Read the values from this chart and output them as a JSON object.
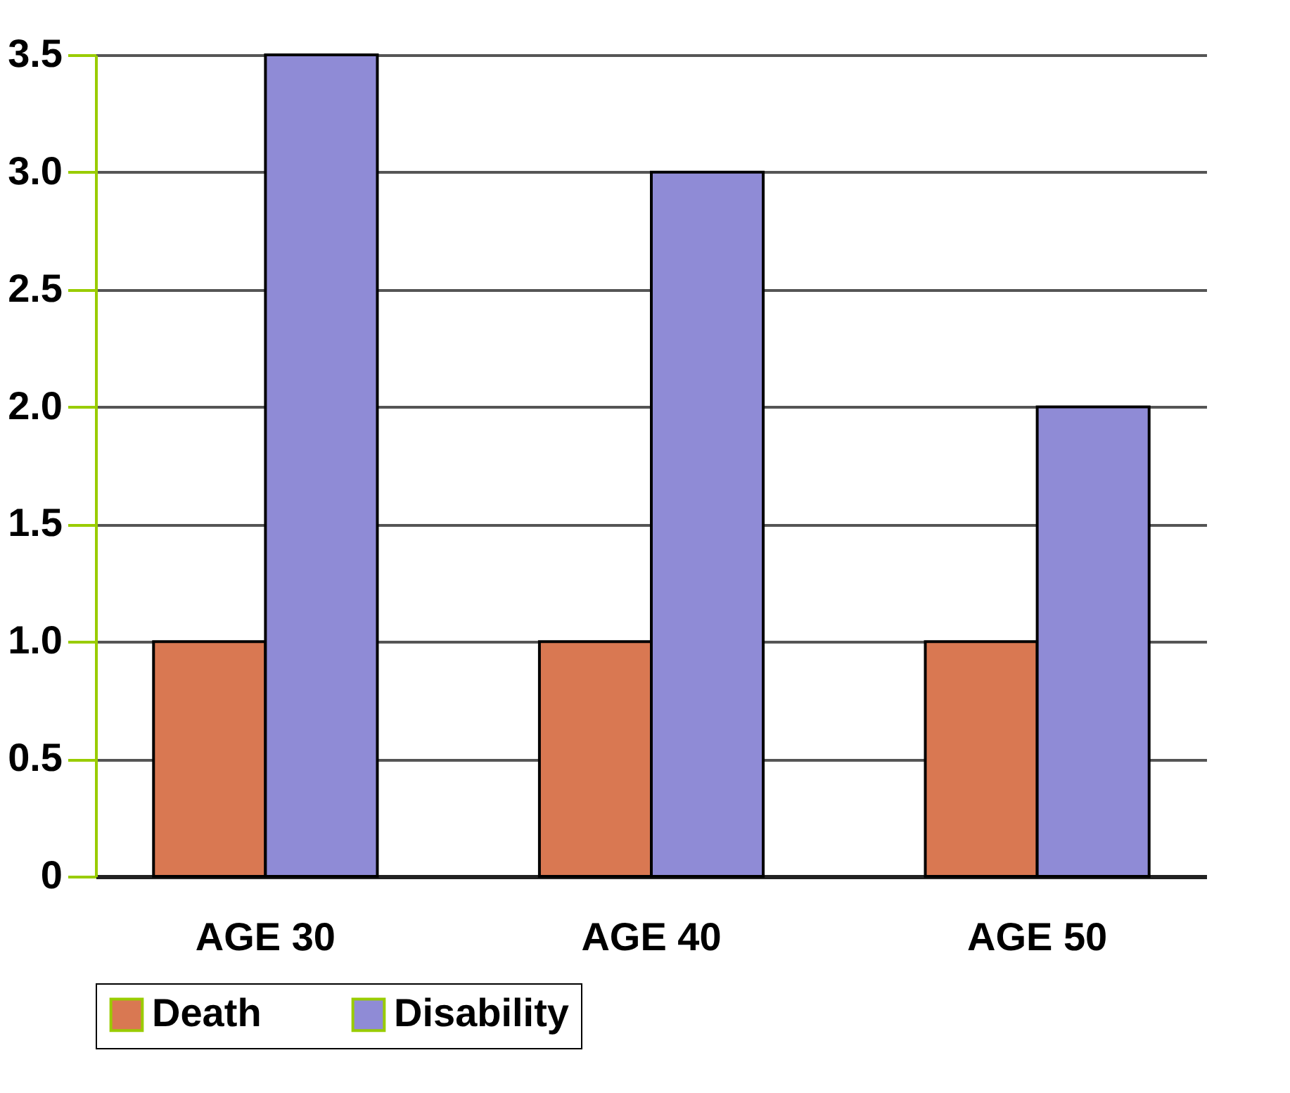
{
  "chart_data": {
    "type": "bar",
    "categories": [
      "AGE 30",
      "AGE 40",
      "AGE 50"
    ],
    "series": [
      {
        "name": "Death",
        "color": "#d97852",
        "values": [
          1.0,
          1.0,
          1.0
        ]
      },
      {
        "name": "Disability",
        "color": "#8f8bd6",
        "values": [
          3.5,
          3.0,
          2.0
        ]
      }
    ],
    "ylim": [
      0,
      3.5
    ],
    "yticks": [
      {
        "value": 0,
        "label": "0"
      },
      {
        "value": 0.5,
        "label": "0.5"
      },
      {
        "value": 1,
        "label": "1.0"
      },
      {
        "value": 1.5,
        "label": "1.5"
      },
      {
        "value": 2,
        "label": "2.0"
      },
      {
        "value": 2.5,
        "label": "2.5"
      },
      {
        "value": 3,
        "label": "3.0"
      },
      {
        "value": 3.5,
        "label": "3.5"
      }
    ],
    "grid": "y",
    "legend": "bottom"
  }
}
